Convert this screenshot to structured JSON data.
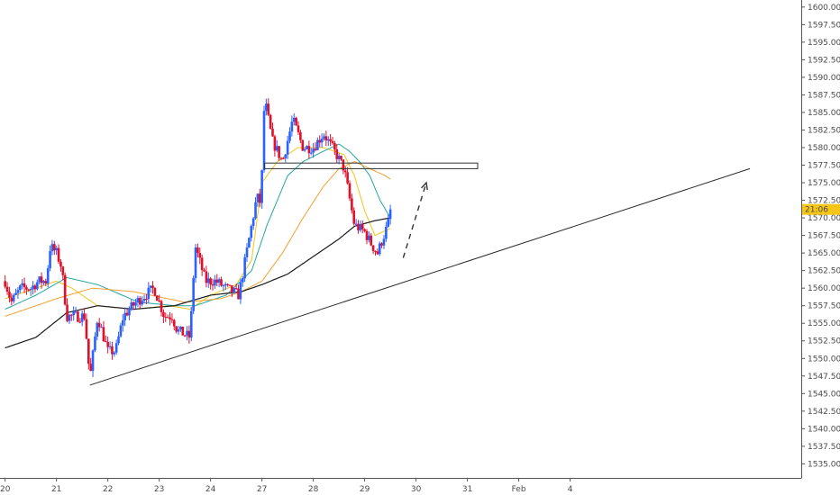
{
  "chart_data": {
    "type": "candlestick",
    "title": "",
    "xlabel": "",
    "ylabel": "",
    "ylim": [
      1533,
      1601
    ],
    "xlim": [
      -0.1,
      15.5
    ],
    "grid": false,
    "y_ticks": [
      "1535.000",
      "1537.500",
      "1540.000",
      "1542.500",
      "1545.000",
      "1547.500",
      "1550.000",
      "1552.500",
      "1555.000",
      "1557.500",
      "1560.000",
      "1562.500",
      "1565.000",
      "1567.500",
      "1570.000",
      "1572.500",
      "1575.000",
      "1577.500",
      "1580.000",
      "1582.500",
      "1585.000",
      "1587.500",
      "1590.000",
      "1592.500",
      "1595.000",
      "1597.500",
      "1600.000"
    ],
    "x_ticks": [
      {
        "label": "20",
        "day": 0
      },
      {
        "label": "21",
        "day": 1
      },
      {
        "label": "22",
        "day": 2
      },
      {
        "label": "23",
        "day": 3
      },
      {
        "label": "24",
        "day": 4
      },
      {
        "label": "27",
        "day": 5
      },
      {
        "label": "28",
        "day": 6
      },
      {
        "label": "29",
        "day": 7
      },
      {
        "label": "30",
        "day": 8
      },
      {
        "label": "31",
        "day": 9
      },
      {
        "label": "Feb",
        "day": 10
      },
      {
        "label": "4",
        "day": 11
      }
    ],
    "current_price_label": "21:06",
    "current_price": 1571.2,
    "up_color": "#2962ff",
    "down_color": "#e0102b",
    "price_anchors": [
      [
        0.0,
        1561
      ],
      [
        0.12,
        1558
      ],
      [
        0.3,
        1560
      ],
      [
        0.5,
        1560
      ],
      [
        0.65,
        1561
      ],
      [
        0.8,
        1561
      ],
      [
        0.88,
        1566
      ],
      [
        1.0,
        1565
      ],
      [
        1.1,
        1563
      ],
      [
        1.2,
        1556
      ],
      [
        1.35,
        1556
      ],
      [
        1.55,
        1556
      ],
      [
        1.65,
        1547
      ],
      [
        1.8,
        1556
      ],
      [
        2.0,
        1551
      ],
      [
        2.15,
        1551
      ],
      [
        2.3,
        1556
      ],
      [
        2.55,
        1558
      ],
      [
        2.9,
        1560
      ],
      [
        3.1,
        1556
      ],
      [
        3.25,
        1556
      ],
      [
        3.35,
        1554
      ],
      [
        3.6,
        1553
      ],
      [
        3.7,
        1566
      ],
      [
        3.9,
        1561
      ],
      [
        4.1,
        1561
      ],
      [
        4.3,
        1560
      ],
      [
        4.55,
        1559
      ],
      [
        4.65,
        1563
      ],
      [
        4.9,
        1573
      ],
      [
        4.98,
        1572
      ],
      [
        5.05,
        1587
      ],
      [
        5.2,
        1581
      ],
      [
        5.4,
        1578
      ],
      [
        5.6,
        1584
      ],
      [
        5.8,
        1580
      ],
      [
        6.0,
        1580
      ],
      [
        6.2,
        1582
      ],
      [
        6.45,
        1579
      ],
      [
        6.6,
        1577
      ],
      [
        6.7,
        1573
      ],
      [
        6.8,
        1569
      ],
      [
        7.0,
        1568
      ],
      [
        7.15,
        1566
      ],
      [
        7.25,
        1565
      ],
      [
        7.45,
        1569
      ],
      [
        7.52,
        1571.2
      ]
    ],
    "moving_averages": [
      {
        "color": "#f5c518",
        "anchors": [
          [
            0.0,
            1558.5
          ],
          [
            1.0,
            1561
          ],
          [
            1.3,
            1560
          ],
          [
            1.8,
            1557.5
          ],
          [
            2.5,
            1557
          ],
          [
            3.2,
            1557.5
          ],
          [
            3.6,
            1557
          ],
          [
            4.0,
            1559
          ],
          [
            4.5,
            1560.5
          ],
          [
            4.8,
            1564
          ],
          [
            5.0,
            1575
          ],
          [
            5.3,
            1578
          ],
          [
            5.7,
            1580
          ],
          [
            6.2,
            1580
          ],
          [
            6.6,
            1579
          ],
          [
            6.8,
            1576
          ],
          [
            7.0,
            1571
          ],
          [
            7.2,
            1567.5
          ],
          [
            7.5,
            1568.5
          ]
        ]
      },
      {
        "color": "#22a7a0",
        "anchors": [
          [
            0.0,
            1557
          ],
          [
            0.6,
            1559
          ],
          [
            1.2,
            1561.5
          ],
          [
            1.8,
            1560.5
          ],
          [
            2.6,
            1558
          ],
          [
            3.3,
            1557.5
          ],
          [
            3.7,
            1557.5
          ],
          [
            4.3,
            1559
          ],
          [
            4.8,
            1562.5
          ],
          [
            5.1,
            1569
          ],
          [
            5.5,
            1576
          ],
          [
            5.8,
            1578
          ],
          [
            6.2,
            1579.5
          ],
          [
            6.5,
            1580.5
          ],
          [
            6.7,
            1579.5
          ],
          [
            6.9,
            1578
          ],
          [
            7.1,
            1576
          ],
          [
            7.3,
            1572.5
          ],
          [
            7.5,
            1570
          ]
        ]
      },
      {
        "color": "#f0a030",
        "anchors": [
          [
            0.0,
            1556
          ],
          [
            1.0,
            1558.5
          ],
          [
            1.7,
            1560
          ],
          [
            2.5,
            1559.5
          ],
          [
            3.5,
            1558
          ],
          [
            4.2,
            1558.5
          ],
          [
            4.6,
            1559.5
          ],
          [
            5.0,
            1561
          ],
          [
            5.4,
            1565
          ],
          [
            5.8,
            1570
          ],
          [
            6.2,
            1574.5
          ],
          [
            6.5,
            1577
          ],
          [
            6.8,
            1578
          ],
          [
            7.1,
            1577
          ],
          [
            7.4,
            1576
          ],
          [
            7.5,
            1575.5
          ]
        ]
      },
      {
        "color": "#1a1a1a",
        "anchors": [
          [
            0.0,
            1551.5
          ],
          [
            0.6,
            1553
          ],
          [
            1.2,
            1556.5
          ],
          [
            1.8,
            1557.5
          ],
          [
            2.5,
            1557
          ],
          [
            3.3,
            1557.5
          ],
          [
            4.0,
            1559
          ],
          [
            4.6,
            1559.5
          ],
          [
            5.0,
            1560.5
          ],
          [
            5.5,
            1562
          ],
          [
            6.0,
            1564.5
          ],
          [
            6.5,
            1567
          ],
          [
            6.8,
            1568.8
          ],
          [
            7.2,
            1569.6
          ],
          [
            7.5,
            1570
          ]
        ]
      }
    ],
    "trendline": {
      "color": "#2a2a2a",
      "from": {
        "day": 1.65,
        "price": 1546.2
      },
      "to": {
        "day": 14.5,
        "price": 1577
      }
    },
    "resistance_zone": {
      "from_day": 5.05,
      "to_day": 9.2,
      "price_low": 1577.0,
      "price_high": 1577.8
    },
    "projection_arrow": {
      "from": {
        "day": 7.75,
        "price": 1564.3
      },
      "to": {
        "day": 8.2,
        "price": 1575
      }
    }
  }
}
